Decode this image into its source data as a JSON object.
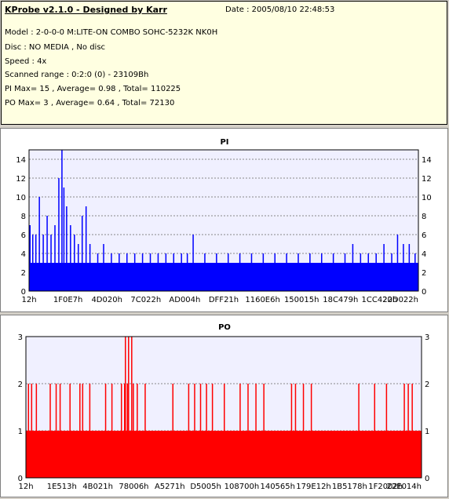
{
  "info": {
    "title": "KProbe v2.1.0 - Designed by Karr",
    "date": "Date : 2005/08/10 22:48:53",
    "model": "Model : 2-0-0-0 M:LITE-ON COMBO SOHC-5232K NK0H",
    "disc": "Disc : NO MEDIA , No disc",
    "speed": "Speed : 4x",
    "range": "Scanned range : 0:2:0 (0) - 23109Bh",
    "pi": "PI Max= 15 , Average= 0.98 , Total= 110225",
    "po": "PO Max= 3 , Average= 0.64 , Total= 72130"
  },
  "colors": {
    "pi": "#0000ff",
    "po": "#ff0000",
    "plot_bg": "#f0f0ff",
    "panel_bg": "#ffffff"
  },
  "chart_data": [
    {
      "type": "bar",
      "title": "PI",
      "ylim": [
        0,
        15
      ],
      "yticks": [
        0,
        2,
        4,
        6,
        8,
        10,
        12,
        14
      ],
      "xticklabels": [
        "12h",
        "1F0E7h",
        "4D020h",
        "7C022h",
        "AD004h",
        "DFF21h",
        "1160E6h",
        "150015h",
        "18C479h",
        "1CC422h",
        "20D022h"
      ],
      "baseline": 3,
      "spikes": [
        {
          "x": 0.001,
          "y": 7
        },
        {
          "x": 0.008,
          "y": 6
        },
        {
          "x": 0.016,
          "y": 6
        },
        {
          "x": 0.025,
          "y": 10
        },
        {
          "x": 0.035,
          "y": 6
        },
        {
          "x": 0.045,
          "y": 8
        },
        {
          "x": 0.055,
          "y": 6
        },
        {
          "x": 0.065,
          "y": 7
        },
        {
          "x": 0.075,
          "y": 12
        },
        {
          "x": 0.083,
          "y": 15
        },
        {
          "x": 0.088,
          "y": 11
        },
        {
          "x": 0.095,
          "y": 9
        },
        {
          "x": 0.105,
          "y": 7
        },
        {
          "x": 0.115,
          "y": 6
        },
        {
          "x": 0.125,
          "y": 5
        },
        {
          "x": 0.135,
          "y": 8
        },
        {
          "x": 0.145,
          "y": 9
        },
        {
          "x": 0.155,
          "y": 5
        },
        {
          "x": 0.175,
          "y": 4
        },
        {
          "x": 0.19,
          "y": 5
        },
        {
          "x": 0.21,
          "y": 4
        },
        {
          "x": 0.23,
          "y": 4
        },
        {
          "x": 0.25,
          "y": 4
        },
        {
          "x": 0.27,
          "y": 4
        },
        {
          "x": 0.29,
          "y": 4
        },
        {
          "x": 0.31,
          "y": 4
        },
        {
          "x": 0.33,
          "y": 4
        },
        {
          "x": 0.35,
          "y": 4
        },
        {
          "x": 0.37,
          "y": 4
        },
        {
          "x": 0.39,
          "y": 4
        },
        {
          "x": 0.405,
          "y": 4
        },
        {
          "x": 0.42,
          "y": 6
        },
        {
          "x": 0.45,
          "y": 4
        },
        {
          "x": 0.48,
          "y": 4
        },
        {
          "x": 0.51,
          "y": 4
        },
        {
          "x": 0.54,
          "y": 4
        },
        {
          "x": 0.57,
          "y": 4
        },
        {
          "x": 0.6,
          "y": 4
        },
        {
          "x": 0.63,
          "y": 4
        },
        {
          "x": 0.66,
          "y": 4
        },
        {
          "x": 0.69,
          "y": 4
        },
        {
          "x": 0.72,
          "y": 4
        },
        {
          "x": 0.75,
          "y": 4
        },
        {
          "x": 0.78,
          "y": 4
        },
        {
          "x": 0.81,
          "y": 4
        },
        {
          "x": 0.83,
          "y": 5
        },
        {
          "x": 0.85,
          "y": 4
        },
        {
          "x": 0.87,
          "y": 4
        },
        {
          "x": 0.89,
          "y": 4
        },
        {
          "x": 0.91,
          "y": 5
        },
        {
          "x": 0.93,
          "y": 4
        },
        {
          "x": 0.945,
          "y": 6
        },
        {
          "x": 0.96,
          "y": 5
        },
        {
          "x": 0.975,
          "y": 5
        },
        {
          "x": 0.99,
          "y": 4
        }
      ]
    },
    {
      "type": "bar",
      "title": "PO",
      "ylim": [
        0,
        3
      ],
      "yticks": [
        0,
        1,
        2,
        3
      ],
      "xticklabels": [
        "12h",
        "1E513h",
        "4B021h",
        "78006h",
        "A5271h",
        "D5005h",
        "108700h",
        "140565h",
        "179E12h",
        "1B5178h",
        "1F2002h",
        "22E014h"
      ],
      "baseline": 1,
      "spikes": [
        {
          "x": 0.005,
          "y": 2
        },
        {
          "x": 0.013,
          "y": 2
        },
        {
          "x": 0.025,
          "y": 2
        },
        {
          "x": 0.06,
          "y": 2
        },
        {
          "x": 0.075,
          "y": 2
        },
        {
          "x": 0.085,
          "y": 2
        },
        {
          "x": 0.11,
          "y": 2
        },
        {
          "x": 0.135,
          "y": 2
        },
        {
          "x": 0.142,
          "y": 2
        },
        {
          "x": 0.16,
          "y": 2
        },
        {
          "x": 0.2,
          "y": 2
        },
        {
          "x": 0.216,
          "y": 2
        },
        {
          "x": 0.24,
          "y": 2
        },
        {
          "x": 0.248,
          "y": 2
        },
        {
          "x": 0.255,
          "y": 2
        },
        {
          "x": 0.25,
          "y": 3
        },
        {
          "x": 0.258,
          "y": 3
        },
        {
          "x": 0.266,
          "y": 3
        },
        {
          "x": 0.27,
          "y": 2
        },
        {
          "x": 0.28,
          "y": 2
        },
        {
          "x": 0.3,
          "y": 2
        },
        {
          "x": 0.37,
          "y": 2
        },
        {
          "x": 0.41,
          "y": 2
        },
        {
          "x": 0.425,
          "y": 2
        },
        {
          "x": 0.44,
          "y": 2
        },
        {
          "x": 0.455,
          "y": 2
        },
        {
          "x": 0.47,
          "y": 2
        },
        {
          "x": 0.5,
          "y": 2
        },
        {
          "x": 0.54,
          "y": 2
        },
        {
          "x": 0.56,
          "y": 2
        },
        {
          "x": 0.58,
          "y": 2
        },
        {
          "x": 0.6,
          "y": 2
        },
        {
          "x": 0.67,
          "y": 2
        },
        {
          "x": 0.68,
          "y": 2
        },
        {
          "x": 0.7,
          "y": 2
        },
        {
          "x": 0.72,
          "y": 2
        },
        {
          "x": 0.84,
          "y": 2
        },
        {
          "x": 0.88,
          "y": 2
        },
        {
          "x": 0.91,
          "y": 2
        },
        {
          "x": 0.955,
          "y": 2
        },
        {
          "x": 0.965,
          "y": 2
        },
        {
          "x": 0.975,
          "y": 2
        }
      ]
    }
  ]
}
